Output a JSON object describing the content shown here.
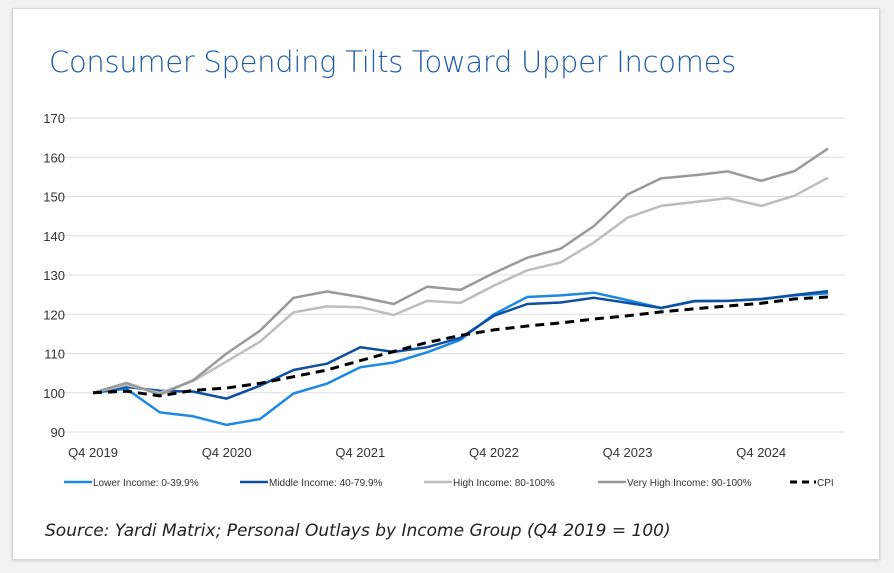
{
  "chart_data": {
    "type": "line",
    "title": "Consumer Spending Tilts Toward Upper Incomes",
    "source": "Source: Yardi Matrix; Personal Outlays by Income Group (Q4 2019 = 100)",
    "x": [
      "Q4 2019",
      "Q1 2020",
      "Q2 2020",
      "Q3 2020",
      "Q4 2020",
      "Q1 2021",
      "Q2 2021",
      "Q3 2021",
      "Q4 2021",
      "Q1 2022",
      "Q2 2022",
      "Q3 2022",
      "Q4 2022",
      "Q1 2023",
      "Q2 2023",
      "Q3 2023",
      "Q4 2023",
      "Q1 2024",
      "Q2 2024",
      "Q3 2024",
      "Q4 2024",
      "Q1 2025",
      "Q2 2025"
    ],
    "x_tick_labels": [
      "Q4 2019",
      "Q4 2020",
      "Q4 2021",
      "Q4 2022",
      "Q4 2023",
      "Q4 2024"
    ],
    "y_ticks": [
      90,
      100,
      110,
      120,
      130,
      140,
      150,
      160,
      170
    ],
    "ylim": [
      90,
      170
    ],
    "grid": true,
    "legend_position": "bottom",
    "series": [
      {
        "name": "Lower Income: 0-39.9%",
        "color": "#1e88e5",
        "dashed": false,
        "values": [
          100,
          101,
          95,
          94,
          91.8,
          93.3,
          99.8,
          102.3,
          106.5,
          107.7,
          110.3,
          113.5,
          120,
          124.4,
          124.8,
          125.5,
          123.6,
          121.6,
          123.4,
          123.4,
          123.9,
          124.8,
          125.3
        ]
      },
      {
        "name": "Middle Income: 40-79.9%",
        "color": "#0d4fa0",
        "dashed": false,
        "values": [
          100,
          101.5,
          100.5,
          100.3,
          98.5,
          101.8,
          105.8,
          107.4,
          111.6,
          110.4,
          111.6,
          114,
          119.6,
          122.6,
          123,
          124.2,
          122.9,
          121.6,
          123.3,
          123.4,
          123.8,
          124.9,
          125.9
        ]
      },
      {
        "name": "High Income: 80-100%",
        "color": "#bdbdbd",
        "dashed": false,
        "values": [
          100,
          102,
          100,
          103,
          108,
          113,
          120.5,
          122,
          121.8,
          119.8,
          123.4,
          122.9,
          127.3,
          131.2,
          133.2,
          138.3,
          144.6,
          147.6,
          148.6,
          149.6,
          147.6,
          150.2,
          154.8
        ]
      },
      {
        "name": "Very High Income: 90-100%",
        "color": "#999999",
        "dashed": false,
        "values": [
          100,
          102.5,
          99.5,
          103.2,
          110,
          115.8,
          124.2,
          125.8,
          124.4,
          122.6,
          127,
          126.2,
          130.5,
          134.4,
          136.7,
          142.5,
          150.5,
          154.6,
          155.4,
          156.4,
          154,
          156.5,
          162.2
        ]
      },
      {
        "name": "CPI",
        "color": "#000000",
        "dashed": true,
        "values": [
          100,
          100.4,
          99.2,
          100.6,
          101.2,
          102.4,
          104.1,
          105.8,
          108.2,
          110.5,
          112.8,
          114.6,
          116,
          117,
          117.8,
          118.8,
          119.6,
          120.6,
          121.4,
          122.1,
          122.8,
          123.9,
          124.4
        ]
      }
    ]
  }
}
